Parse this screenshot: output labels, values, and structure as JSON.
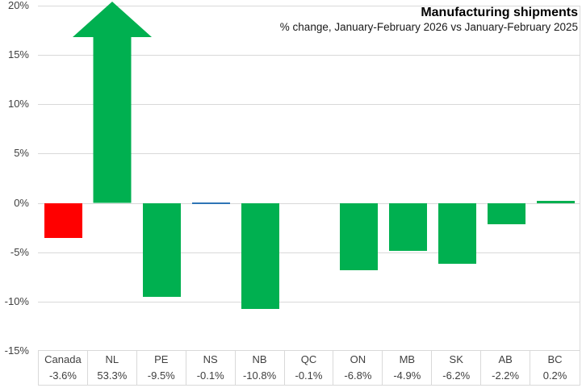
{
  "header": {
    "title": "Manufacturing shipments",
    "subtitle": "% change, January-February 2026 vs January-February 2025"
  },
  "chart_data": {
    "type": "bar",
    "title": "Manufacturing shipments",
    "subtitle": "% change, January-February 2026 vs January-February 2025",
    "categories": [
      "Canada",
      "NL",
      "PE",
      "NS",
      "NB",
      "QC",
      "ON",
      "MB",
      "SK",
      "AB",
      "BC"
    ],
    "values": [
      -3.6,
      53.3,
      -9.5,
      -0.1,
      -10.8,
      -0.1,
      -6.8,
      -4.9,
      -6.2,
      -2.2,
      0.2
    ],
    "value_labels": [
      "-3.6%",
      "53.3%",
      "-9.5%",
      "-0.1%",
      "-10.8%",
      "-0.1%",
      "-6.8%",
      "-4.9%",
      "-6.2%",
      "-2.2%",
      "0.2%"
    ],
    "ylim": [
      -15,
      20
    ],
    "yticks": [
      20,
      15,
      10,
      5,
      0,
      -5,
      -10,
      -15
    ],
    "ytick_labels": [
      "20%",
      "15%",
      "10%",
      "5%",
      "0%",
      "-5%",
      "-10%",
      "-15%"
    ],
    "grid": true,
    "legend": "none",
    "data_table_shown": true,
    "bar_colors": [
      "#FF0000",
      "#00B050",
      "#00B050",
      "#2E75B6",
      "#00B050",
      "#00B050",
      "#00B050",
      "#00B050",
      "#00B050",
      "#00B050",
      "#00B050"
    ],
    "bar_styles": [
      "bar",
      "up-arrow-clipped",
      "bar",
      "thin-line",
      "bar",
      "not-visible",
      "bar",
      "bar",
      "bar",
      "bar",
      "bar"
    ]
  },
  "colors": {
    "positive_green": "#00B050",
    "canada_red": "#FF0000",
    "ns_blue": "#2E75B6",
    "gridline": "#d9d9d9",
    "axis_text": "#404040"
  }
}
